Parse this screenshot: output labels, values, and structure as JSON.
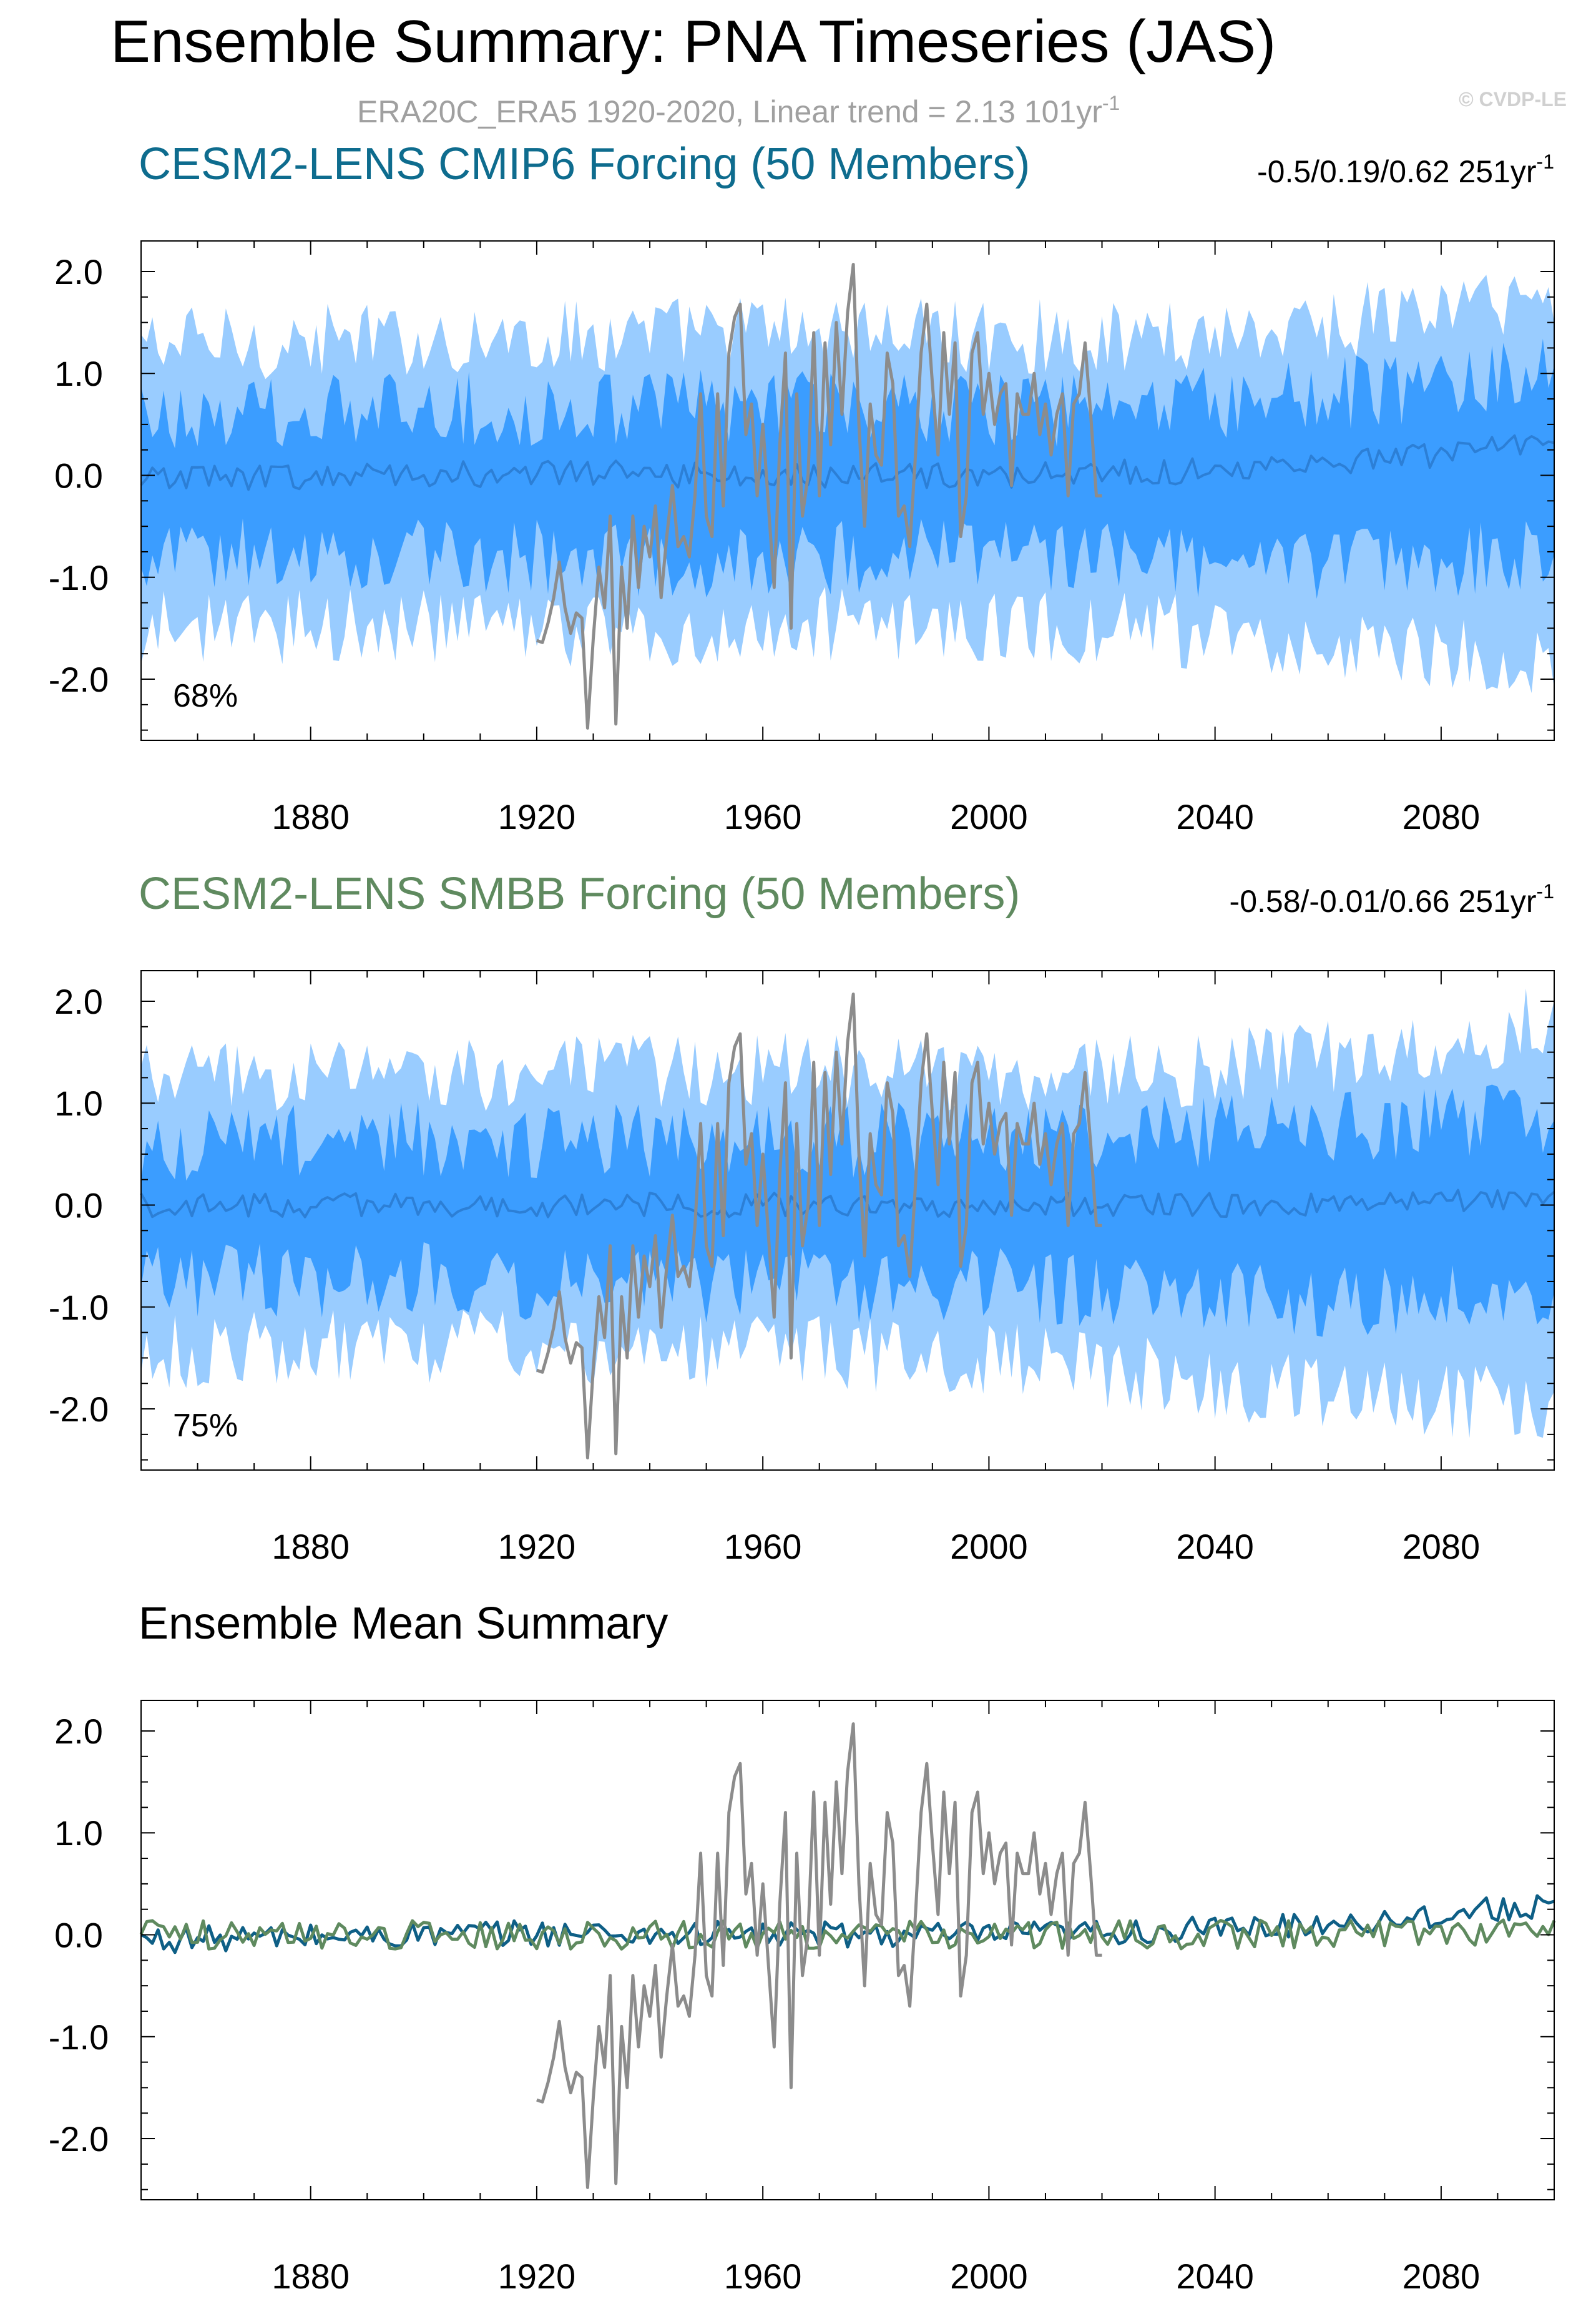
{
  "title": "Ensemble Summary: PNA Timeseries (JAS)",
  "subtitle": "ERA20C_ERA5 1920-2020, Linear trend = 2.13 101yr",
  "subtitle_sup": "-1",
  "watermark": "© CVDP-LE",
  "colors": {
    "cmip6_title": "#0e6c8e",
    "smbb_title": "#5f8a5f",
    "outer_band": "#99ccff",
    "inner_band": "#3b9dff",
    "ens_mean_line": "#2c7fd6",
    "obs": "#8c8c8c",
    "cmip6_mean": "#0e5f86",
    "smbb_mean": "#5f8a5f"
  },
  "chart_data": [
    {
      "type": "area",
      "title": "CESM2-LENS CMIP6 Forcing (50 Members)",
      "trend_stats": "-0.5/0.19/0.62 251yr",
      "trend_stats_sup": "-1",
      "panel_label": "68%",
      "xlim": [
        1850,
        2100
      ],
      "ylim": [
        -2.6,
        2.3
      ],
      "xticks": [
        "1880",
        "1920",
        "1960",
        "2000",
        "2040",
        "2080"
      ],
      "yticks": [
        "2.0",
        "1.0",
        "0.0",
        "-1.0",
        "-2.0"
      ],
      "series": [
        {
          "name": "ensemble range (2.5-97.5%)",
          "style": "outer_band",
          "start": 1850,
          "end": 2100,
          "upper_base": [
            [
              1850,
              1.25
            ],
            [
              1900,
              1.3
            ],
            [
              1940,
              1.35
            ],
            [
              1960,
              1.4
            ],
            [
              1990,
              1.35
            ],
            [
              2020,
              1.3
            ],
            [
              2060,
              1.45
            ],
            [
              2100,
              1.75
            ]
          ],
          "lower_base": [
            [
              1850,
              -1.45
            ],
            [
              1900,
              -1.45
            ],
            [
              1940,
              -1.5
            ],
            [
              1980,
              -1.4
            ],
            [
              2020,
              -1.45
            ],
            [
              2060,
              -1.6
            ],
            [
              2100,
              -1.75
            ]
          ]
        },
        {
          "name": "ensemble interquartile (25-75%)",
          "style": "inner_band",
          "start": 1850,
          "end": 2100,
          "upper_base": [
            [
              1850,
              0.55
            ],
            [
              1900,
              0.6
            ],
            [
              1950,
              0.65
            ],
            [
              2000,
              0.6
            ],
            [
              2040,
              0.65
            ],
            [
              2080,
              0.85
            ],
            [
              2100,
              1.0
            ]
          ],
          "lower_base": [
            [
              1850,
              -0.75
            ],
            [
              1900,
              -0.75
            ],
            [
              1950,
              -0.8
            ],
            [
              2000,
              -0.75
            ],
            [
              2040,
              -0.85
            ],
            [
              2080,
              -0.8
            ],
            [
              2100,
              -0.7
            ]
          ]
        },
        {
          "name": "ensemble mean",
          "style": "ens_mean_line",
          "start": 1850,
          "end": 2100,
          "base": [
            [
              1850,
              -0.05
            ],
            [
              1920,
              0.02
            ],
            [
              1960,
              0.0
            ],
            [
              2000,
              0.0
            ],
            [
              2040,
              0.05
            ],
            [
              2070,
              0.15
            ],
            [
              2100,
              0.3
            ]
          ],
          "noise": 0.13
        }
      ]
    },
    {
      "type": "area",
      "title": "CESM2-LENS SMBB Forcing (50 Members)",
      "trend_stats": "-0.58/-0.01/0.66 251yr",
      "trend_stats_sup": "-1",
      "panel_label": "75%",
      "xlim": [
        1850,
        2100
      ],
      "ylim": [
        -2.6,
        2.3
      ],
      "xticks": [
        "1880",
        "1920",
        "1960",
        "2000",
        "2040",
        "2080"
      ],
      "yticks": [
        "2.0",
        "1.0",
        "0.0",
        "-1.0",
        "-2.0"
      ],
      "series": [
        {
          "name": "ensemble range (2.5-97.5%)",
          "style": "outer_band",
          "start": 1850,
          "end": 2100,
          "upper_base": [
            [
              1850,
              1.2
            ],
            [
              1900,
              1.25
            ],
            [
              1960,
              1.3
            ],
            [
              2000,
              1.25
            ],
            [
              2040,
              1.3
            ],
            [
              2080,
              1.55
            ],
            [
              2100,
              1.8
            ]
          ],
          "lower_base": [
            [
              1850,
              -1.4
            ],
            [
              1900,
              -1.35
            ],
            [
              1960,
              -1.4
            ],
            [
              2000,
              -1.45
            ],
            [
              2040,
              -1.7
            ],
            [
              2080,
              -1.9
            ],
            [
              2100,
              -1.9
            ]
          ]
        },
        {
          "name": "ensemble interquartile (25-75%)",
          "style": "inner_band",
          "start": 1850,
          "end": 2100,
          "upper_base": [
            [
              1850,
              0.55
            ],
            [
              1900,
              0.6
            ],
            [
              1960,
              0.6
            ],
            [
              2000,
              0.6
            ],
            [
              2040,
              0.7
            ],
            [
              2100,
              0.85
            ]
          ],
          "lower_base": [
            [
              1850,
              -0.7
            ],
            [
              1900,
              -0.7
            ],
            [
              1960,
              -0.75
            ],
            [
              2000,
              -0.75
            ],
            [
              2040,
              -0.9
            ],
            [
              2100,
              -0.85
            ]
          ]
        },
        {
          "name": "ensemble mean",
          "style": "ens_mean_line",
          "start": 1850,
          "end": 2100,
          "base": [
            [
              1850,
              0.0
            ],
            [
              1960,
              0.0
            ],
            [
              2040,
              0.0
            ],
            [
              2100,
              0.05
            ]
          ],
          "noise": 0.12
        }
      ]
    },
    {
      "type": "line",
      "title": "Ensemble Mean Summary",
      "xlim": [
        1850,
        2100
      ],
      "ylim": [
        -2.6,
        2.3
      ],
      "xticks": [
        "1880",
        "1920",
        "1960",
        "2000",
        "2040",
        "2080"
      ],
      "yticks": [
        "2.0",
        "1.0",
        "0.0",
        "-1.0",
        "-2.0"
      ],
      "series": [
        {
          "name": "CESM2-LENS CMIP6 Forcing ensemble mean",
          "style": "cmip6_mean",
          "start": 1850,
          "end": 2100,
          "base": [
            [
              1850,
              -0.05
            ],
            [
              1920,
              0.02
            ],
            [
              1960,
              0.0
            ],
            [
              2000,
              0.0
            ],
            [
              2040,
              0.05
            ],
            [
              2070,
              0.15
            ],
            [
              2100,
              0.3
            ]
          ],
          "noise": 0.13
        },
        {
          "name": "CESM2-LENS SMBB Forcing ensemble mean",
          "style": "smbb_mean",
          "start": 1850,
          "end": 2100,
          "base": [
            [
              1850,
              0.0
            ],
            [
              1960,
              0.0
            ],
            [
              2040,
              0.0
            ],
            [
              2100,
              0.05
            ]
          ],
          "noise": 0.14
        }
      ]
    }
  ],
  "obs": {
    "name": "ERA20C_ERA5",
    "start": 1920,
    "values": [
      -1.62,
      -1.64,
      -1.45,
      -1.2,
      -0.85,
      -1.3,
      -1.55,
      -1.35,
      -1.4,
      -2.48,
      -1.6,
      -0.9,
      -1.3,
      -0.4,
      -2.44,
      -0.9,
      -1.5,
      -0.4,
      -1.1,
      -0.5,
      -0.8,
      -0.3,
      -1.2,
      -0.6,
      -0.1,
      -0.7,
      -0.6,
      -0.8,
      -0.2,
      0.8,
      -0.4,
      -0.6,
      0.8,
      -0.3,
      1.2,
      1.55,
      1.68,
      0.4,
      0.7,
      -0.2,
      0.5,
      -0.3,
      -1.1,
      0.3,
      1.2,
      -1.5,
      0.8,
      -0.4,
      0.0,
      1.4,
      -0.2,
      1.3,
      0.3,
      1.5,
      0.6,
      1.6,
      2.07,
      0.5,
      -0.5,
      0.7,
      0.2,
      0.1,
      1.2,
      0.9,
      -0.4,
      -0.3,
      -0.7,
      0.2,
      1.2,
      1.68,
      0.9,
      0.2,
      1.4,
      0.6,
      1.3,
      -0.6,
      -0.2,
      1.2,
      1.4,
      0.6,
      1.0,
      0.5,
      0.8,
      0.9,
      -0.1,
      0.8,
      0.6,
      0.6,
      1.0,
      0.4,
      0.7,
      0.2,
      0.6,
      0.8,
      -0.2,
      0.7,
      0.8,
      1.3,
      0.6,
      -0.2,
      -0.2
    ]
  }
}
